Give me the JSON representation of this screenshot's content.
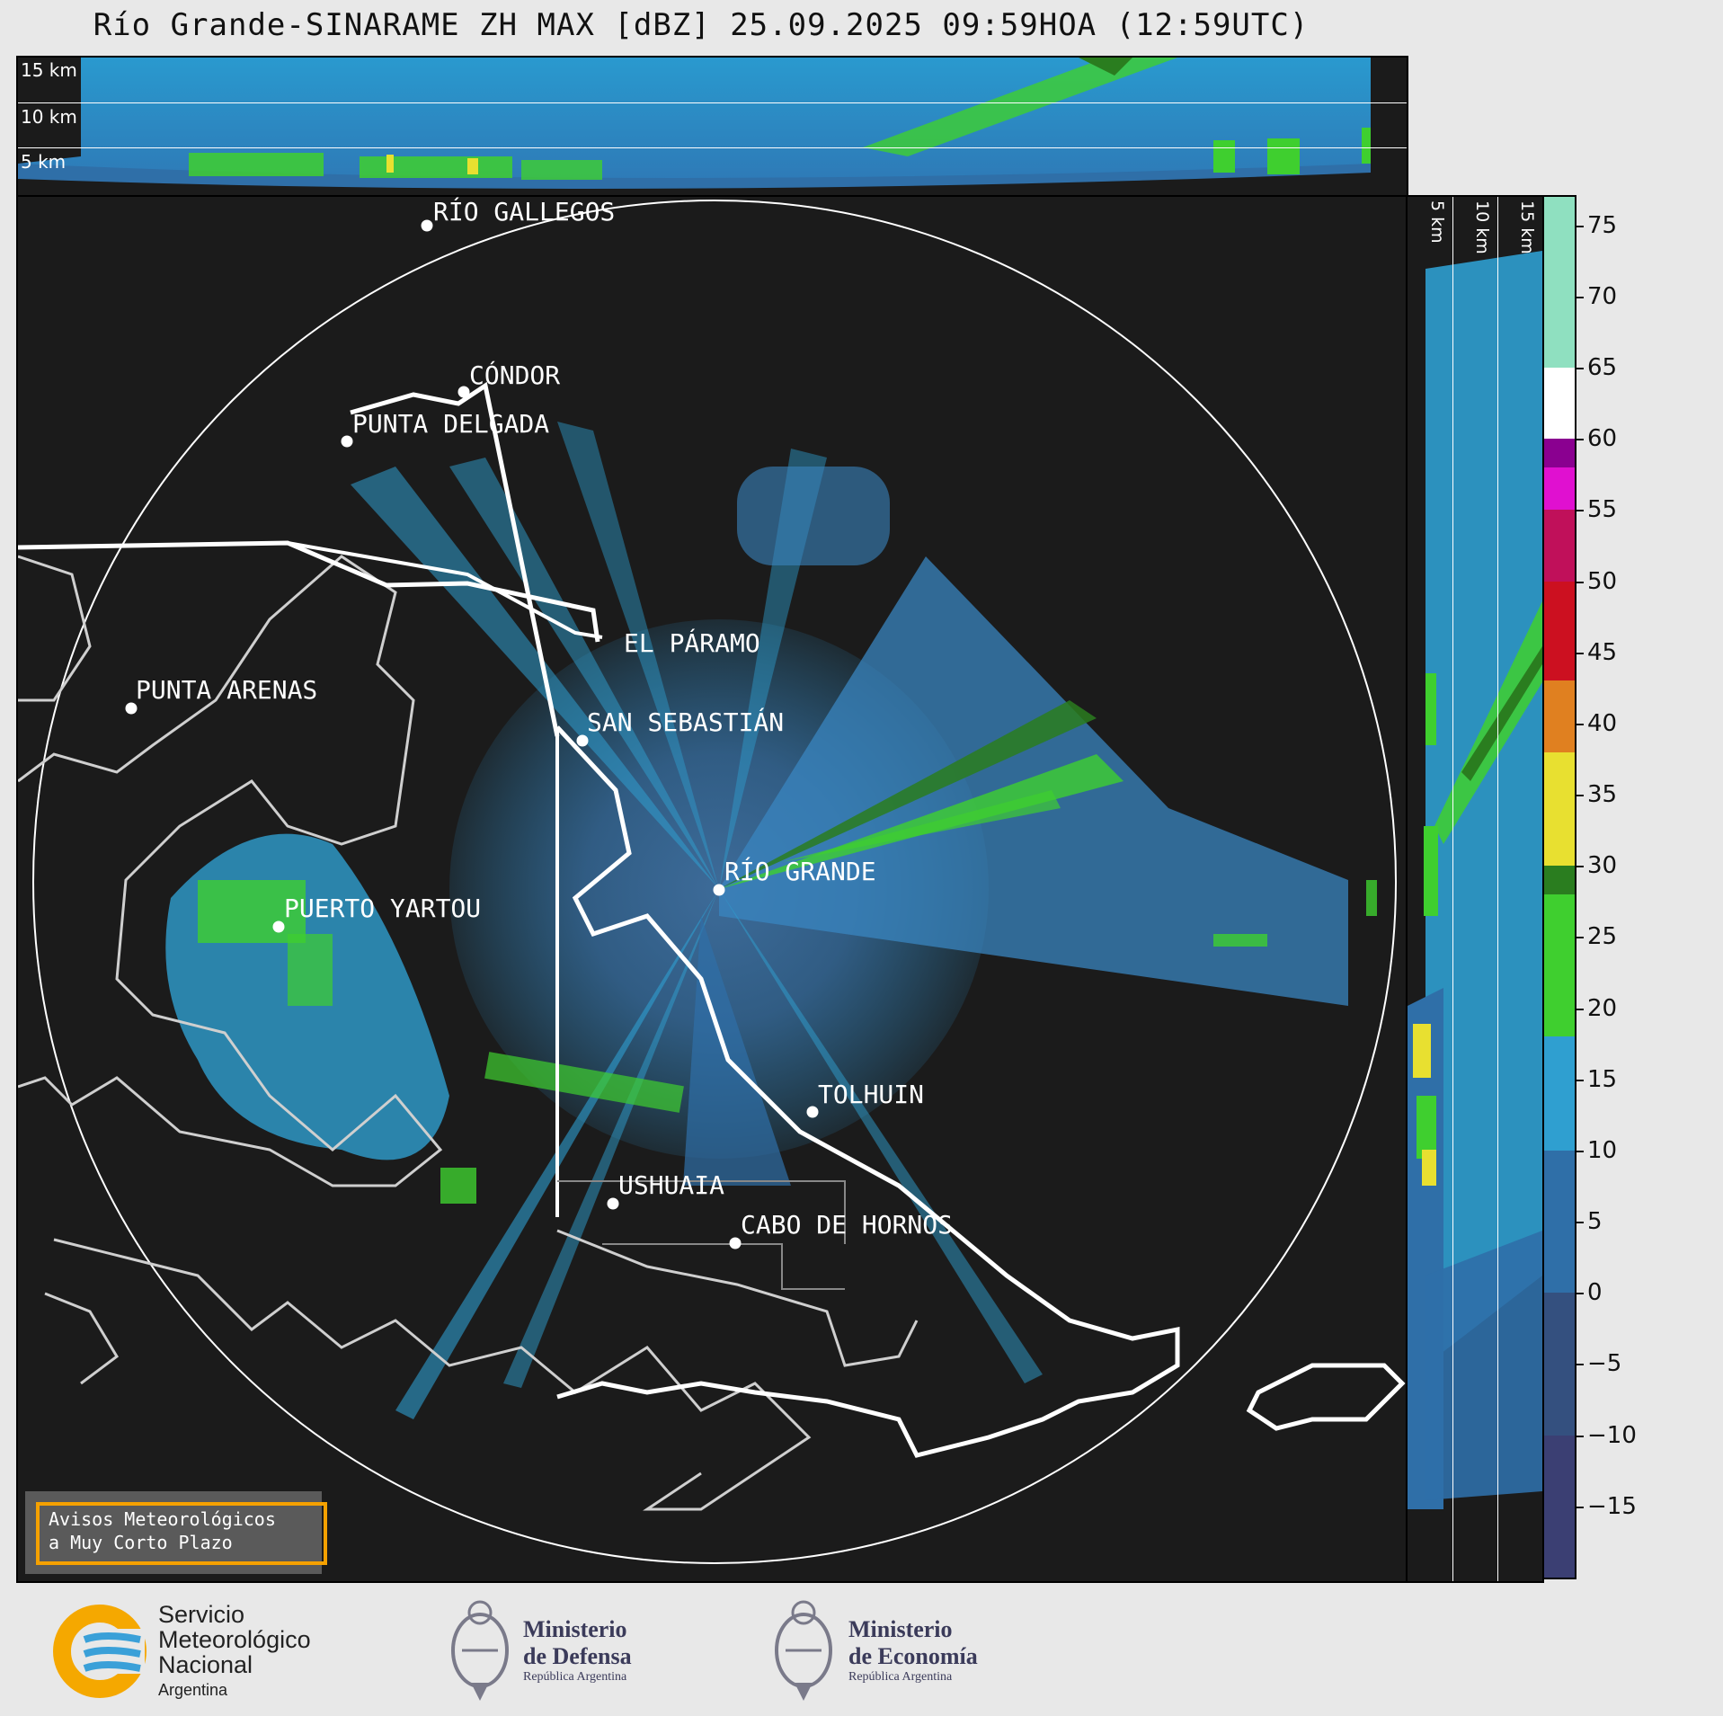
{
  "title": "Río Grande-SINARAME ZH MAX [dBZ] 25.09.2025 09:59HOA (12:59UTC)",
  "top_panel": {
    "levels": [
      "15 km",
      "10 km",
      "5 km"
    ]
  },
  "right_panel": {
    "levels": [
      "5 km",
      "10 km",
      "15 km"
    ]
  },
  "cities": [
    {
      "name": "RÍO GALLEGOS"
    },
    {
      "name": "CÓNDOR"
    },
    {
      "name": "PUNTA DELGADA"
    },
    {
      "name": "EL PÁRAMO"
    },
    {
      "name": "SAN SEBASTIÁN"
    },
    {
      "name": "PUNTA ARENAS"
    },
    {
      "name": "RÍO GRANDE"
    },
    {
      "name": "PUERTO YARTOU"
    },
    {
      "name": "TOLHUIN"
    },
    {
      "name": "USHUAIA"
    },
    {
      "name": "CABO DE HORNOS"
    }
  ],
  "notice": {
    "line1": "Avisos Meteorológicos",
    "line2": "a Muy Corto Plazo"
  },
  "colorbar": {
    "unit": "dBZ",
    "ticks": [
      "75",
      "70",
      "65",
      "60",
      "55",
      "50",
      "45",
      "40",
      "35",
      "30",
      "25",
      "20",
      "15",
      "10",
      "5",
      "0",
      "−5",
      "−10",
      "−15"
    ],
    "colors": {
      "low": "#3b3f73",
      "mid_low": "#2f6fa8",
      "blue": "#2f9fd0",
      "green": "#3fcf2f",
      "dark_green": "#2a7d1f",
      "yellow": "#e8e030",
      "orange": "#e08020",
      "red": "#cc1020",
      "magenta": "#e010d0",
      "purple": "#8a0090",
      "white": "#ffffff",
      "mint": "#8fe0c0"
    }
  },
  "logos": {
    "smn": {
      "line1": "Servicio",
      "line2": "Meteorológico",
      "line3": "Nacional",
      "line4": "Argentina"
    },
    "defensa": {
      "line1": "Ministerio",
      "line2": "de Defensa",
      "line3": "República Argentina"
    },
    "economia": {
      "line1": "Ministerio",
      "line2": "de Economía",
      "line3": "República Argentina"
    }
  }
}
